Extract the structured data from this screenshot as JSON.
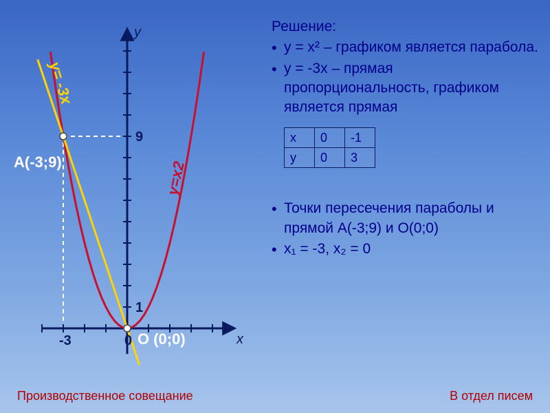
{
  "chart": {
    "type": "overlay",
    "background_gradient": [
      "#3a66c4",
      "#5b8ad8",
      "#7fa8e2",
      "#a8c5ec"
    ],
    "axis_color": "#0a1a5e",
    "axis_width": 3,
    "tick_length": 6,
    "x_range": [
      -4,
      5
    ],
    "y_range": [
      -3,
      14
    ],
    "x_label": "x",
    "y_label": "y",
    "x_tick_labels": {
      "-3": "-3",
      "0": "0"
    },
    "y_tick_labels": {
      "1": "1",
      "9": "9"
    },
    "x_ticks": [
      -4,
      -3,
      -2,
      -1,
      1,
      2,
      3,
      4
    ],
    "y_ticks": [
      1,
      2,
      3,
      4,
      5,
      6,
      7,
      8,
      9,
      10,
      11,
      12,
      13
    ],
    "parabola": {
      "label": "y=x2",
      "label_color": "#c8102e",
      "equation": "y=x^2",
      "color": "#c8102e",
      "width": 3,
      "points_x": [
        -3.6,
        -3.4,
        -3.2,
        -3,
        -2.8,
        -2.6,
        -2.4,
        -2.2,
        -2,
        -1.8,
        -1.6,
        -1.4,
        -1.2,
        -1,
        -0.8,
        -0.6,
        -0.4,
        -0.2,
        0,
        0.2,
        0.4,
        0.6,
        0.8,
        1,
        1.2,
        1.4,
        1.6,
        1.8,
        2,
        2.2,
        2.4,
        2.6,
        2.8,
        3,
        3.2,
        3.4,
        3.6
      ]
    },
    "line": {
      "label": "y= -3x",
      "label_color": "#ffd400",
      "equation": "y=-3x",
      "color": "#ffd400",
      "width": 3,
      "x1": -4.2,
      "x2": 1.0
    },
    "guide_dash": {
      "color": "#ffffff",
      "dasharray": "6,5",
      "width": 2,
      "target_x": -3,
      "target_y": 9
    },
    "intersection_points": [
      {
        "name": "A",
        "coords_text": "(-3;9)",
        "x": -3,
        "y": 9,
        "marker_color": "#ffffff",
        "marker_border": "#444",
        "r": 5
      },
      {
        "name": "O",
        "coords_text": "(0;0)",
        "x": 0,
        "y": 0,
        "marker_color": "#ffffff",
        "marker_border": "#444",
        "r": 5
      }
    ],
    "label_font_size": 22,
    "tick_label_font_size": 20,
    "tick_label_color": "#0a1a5e"
  },
  "solution": {
    "heading": "Решение:",
    "bullets_top": [
      "y = x² – графиком является парабола.",
      "y = -3x – прямая пропорциональность, графиком является прямая"
    ],
    "table": {
      "columns": [
        "x",
        "0",
        "-1"
      ],
      "rows": [
        [
          "y",
          "0",
          "3"
        ]
      ],
      "border_color": "#0a1a5e",
      "font_size": 18
    },
    "bullets_bottom": [
      "Точки пересечения параболы и прямой  A(-3;9) и O(0;0)",
      "x₁ = -3, x₂ = 0"
    ],
    "text_color": "#00008b",
    "font_size": 21
  },
  "footer": {
    "left": "Производственное совещание",
    "right": "В отдел писем",
    "color": "#b30000",
    "font_size": 18
  },
  "labels": {
    "point_a_prefix": "A",
    "point_a_coords": "(-3;9)",
    "point_o_prefix": "O ",
    "point_o_coords": "(0;0)"
  }
}
